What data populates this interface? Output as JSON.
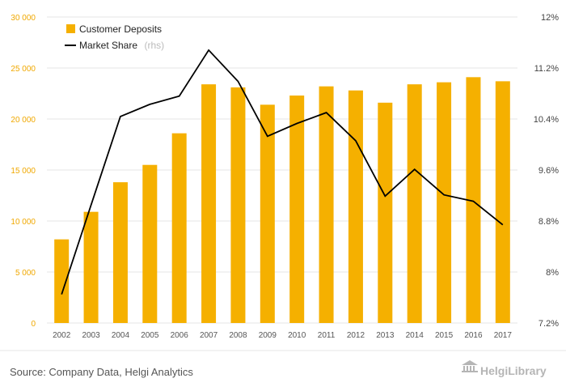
{
  "chart_data": {
    "type": "bar",
    "categories": [
      "2002",
      "2003",
      "2004",
      "2005",
      "2006",
      "2007",
      "2008",
      "2009",
      "2010",
      "2011",
      "2012",
      "2013",
      "2014",
      "2015",
      "2016",
      "2017"
    ],
    "series": [
      {
        "name": "Customer Deposits",
        "type": "bar",
        "axis": "left",
        "color": "#f5b000",
        "values": [
          8200,
          10900,
          13800,
          15500,
          18600,
          23400,
          23100,
          21400,
          22300,
          23200,
          22800,
          21600,
          23400,
          23600,
          24100,
          23700
        ]
      },
      {
        "name": "Market Share",
        "type": "line",
        "axis": "right",
        "color": "#000000",
        "values": [
          7.65,
          9.05,
          10.44,
          10.63,
          10.76,
          11.48,
          10.99,
          10.13,
          10.33,
          10.5,
          10.06,
          9.19,
          9.61,
          9.21,
          9.11,
          8.74
        ]
      }
    ],
    "ylim": [
      0,
      30000
    ],
    "y2lim": [
      7.2,
      12
    ],
    "yticks": [
      "0",
      "5 000",
      "10 000",
      "15 000",
      "20 000",
      "25 000",
      "30 000"
    ],
    "y2ticks": [
      "7.2%",
      "8%",
      "8.8%",
      "9.6%",
      "10.4%",
      "11.2%",
      "12%"
    ],
    "legend": {
      "placement": "top-left",
      "deposits_label": "Customer Deposits",
      "share_label": "Market Share",
      "share_suffix": "(rhs)"
    },
    "grid": true
  },
  "footer": {
    "source": "Source: Company Data, Helgi Analytics",
    "brand": "HelgiLibrary"
  },
  "colors": {
    "bar": "#f5b000",
    "line": "#000000",
    "grid": "#e6e6e6",
    "left_tick": "#f0a800"
  }
}
